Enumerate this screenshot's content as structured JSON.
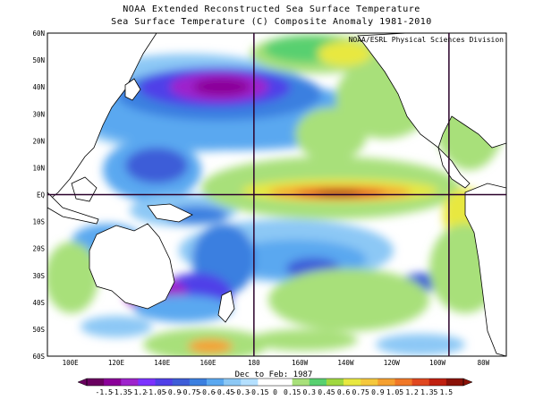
{
  "header": {
    "title1": "NOAA Extended Reconstructed Sea Surface Temperature",
    "title2": "Sea Surface Temperature (C) Composite Anomaly 1981-2010"
  },
  "map": {
    "credit": "NOAA/ESRL Physical Sciences Division",
    "period": "Dec to Feb: 1987",
    "lon_labels": [
      "100E",
      "120E",
      "140E",
      "160E",
      "180",
      "160W",
      "140W",
      "120W",
      "100W",
      "80W"
    ],
    "lat_labels": [
      "60N",
      "50N",
      "40N",
      "30N",
      "20N",
      "10N",
      "EQ",
      "10S",
      "20S",
      "30S",
      "40S",
      "50S",
      "60S"
    ],
    "reference_lines": {
      "lat_deg": [
        0
      ],
      "lon_deg": [
        180,
        265
      ]
    }
  },
  "colorbar": {
    "labels": [
      "-1.5",
      "-1.35",
      "-1.2",
      "-1.05",
      "-0.9",
      "-0.75",
      "-0.6",
      "-0.45",
      "-0.3",
      "-0.15",
      "0",
      "0.15",
      "0.3",
      "0.45",
      "0.6",
      "0.75",
      "0.9",
      "1.05",
      "1.2",
      "1.35",
      "1.5"
    ],
    "colors": [
      "#6a0060",
      "#8b0099",
      "#9e23cc",
      "#7b32ff",
      "#5040e8",
      "#3e5dd8",
      "#3b7fe0",
      "#5aa8f0",
      "#8cc8f5",
      "#b4e0ff",
      "#ffffff",
      "#ffffff",
      "#a8e07a",
      "#58d070",
      "#a0d840",
      "#e8e840",
      "#f5c83c",
      "#f5a030",
      "#f07828",
      "#e04820",
      "#c02010",
      "#8a1208"
    ]
  }
}
